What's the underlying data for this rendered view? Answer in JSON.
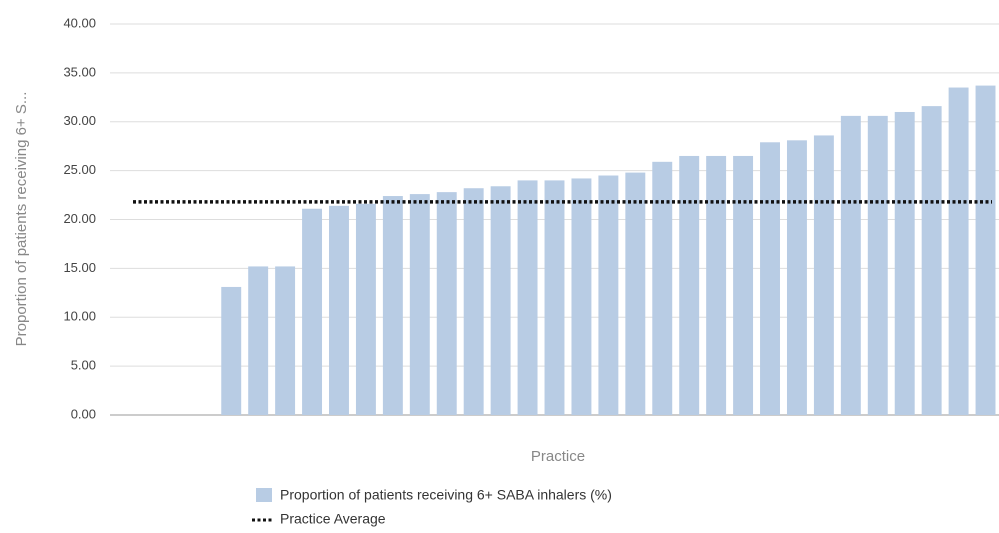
{
  "chart_data": {
    "type": "bar",
    "y_label": "Proportion of patients receiving 6+ S...",
    "x_label": "Practice",
    "categories": [
      null,
      null,
      null,
      null,
      null,
      null,
      null,
      null,
      null,
      null,
      null,
      null,
      null,
      null,
      null,
      null,
      null,
      null,
      null,
      null,
      null,
      null,
      null,
      null,
      null,
      null,
      null,
      null,
      null,
      null,
      null,
      null,
      null
    ],
    "series": [
      {
        "name": "Proportion of patients receiving 6+ SABA inhalers (%)",
        "color": "#b8cce4",
        "values": [
          null,
          null,
          null,
          null,
          13.1,
          15.2,
          15.2,
          21.1,
          21.4,
          21.6,
          22.4,
          22.6,
          22.8,
          23.2,
          23.4,
          24.0,
          24.0,
          24.2,
          24.5,
          24.8,
          25.9,
          26.5,
          26.5,
          26.5,
          27.9,
          28.1,
          28.6,
          30.6,
          30.6,
          31.0,
          31.6,
          33.5,
          33.7
        ]
      }
    ],
    "average": {
      "name": "Practice Average",
      "color": "#111111",
      "value": 21.8
    },
    "ylim": [
      0,
      40
    ],
    "yticks": [
      {
        "value": 0,
        "label": "0.00"
      },
      {
        "value": 5,
        "label": "5.00"
      },
      {
        "value": 10,
        "label": "10.00"
      },
      {
        "value": 15,
        "label": "15.00"
      },
      {
        "value": 20,
        "label": "20.00"
      },
      {
        "value": 25,
        "label": "25.00"
      },
      {
        "value": 30,
        "label": "30.00"
      },
      {
        "value": 35,
        "label": "35.00"
      },
      {
        "value": 40,
        "label": "40.00"
      }
    ],
    "grid": true
  }
}
